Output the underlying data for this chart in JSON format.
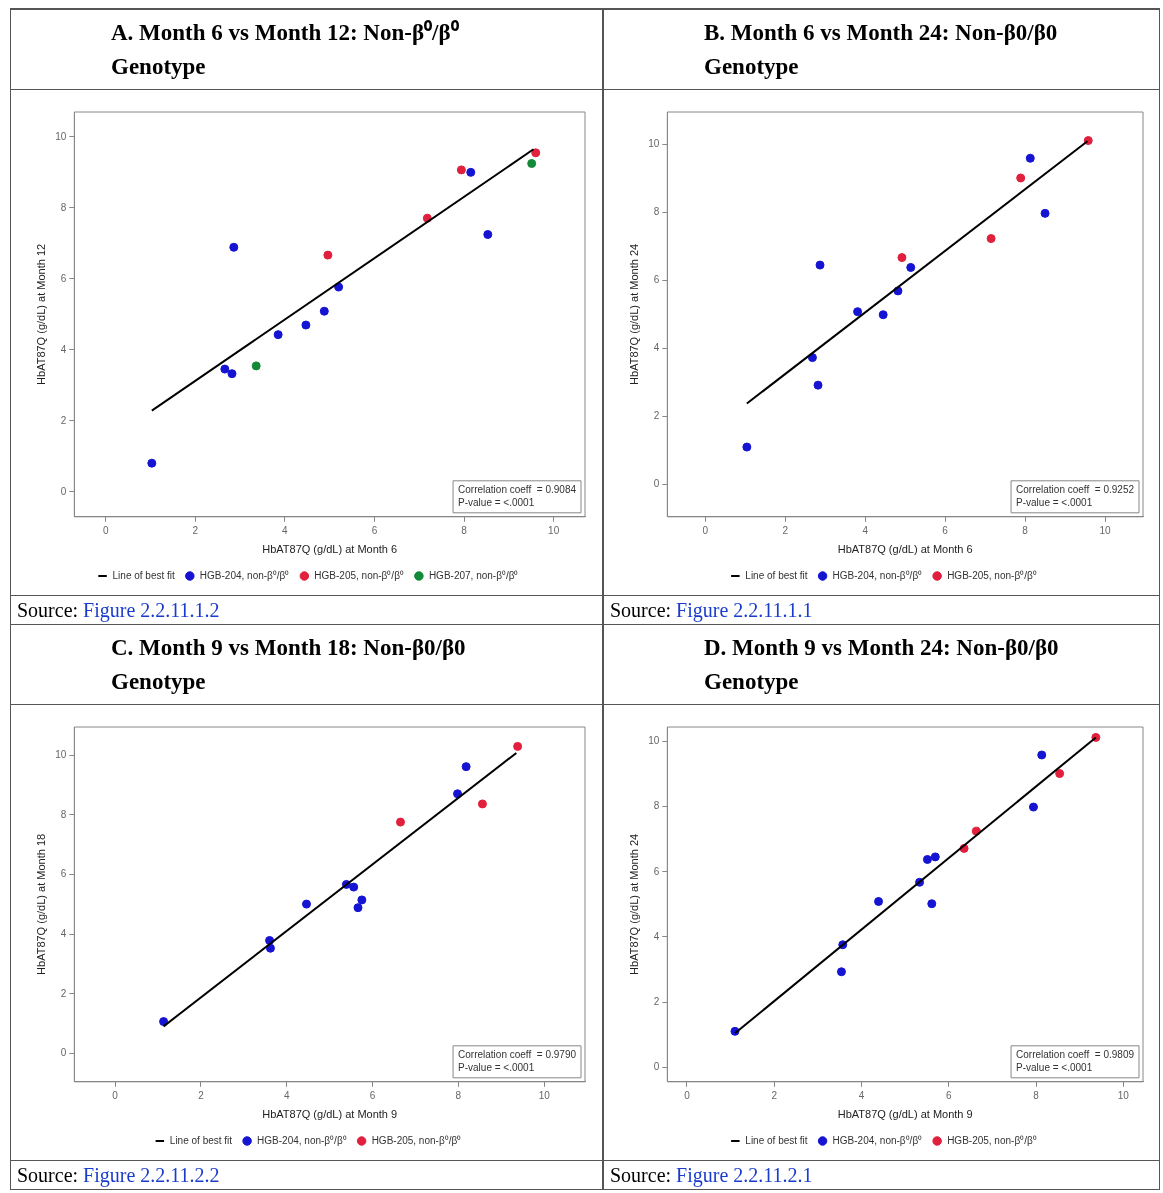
{
  "chart_data": [
    {
      "type": "scatter",
      "title": "A.  Month 6 vs Month 12: Non-β⁰/β⁰ Genotype",
      "xlabel": "HbAT87Q (g/dL) at Month 6",
      "ylabel": "HbAT87Q (g/dL) at Month 12",
      "xlim": [
        -0.7,
        10.7
      ],
      "ylim": [
        -0.7,
        10.7
      ],
      "xticks": [
        0,
        2,
        4,
        6,
        8,
        10
      ],
      "yticks": [
        0,
        2,
        4,
        6,
        8,
        10
      ],
      "legend": "bottom",
      "marker": "circle",
      "annotations": [
        "Correlation coeff  = 0.9084",
        "P-value = <.0001",
        "Source: Figure 2.2.11.1.2"
      ],
      "series": [
        {
          "name": "HGB-204, non-β⁰/β⁰",
          "color": "#1414d2",
          "x": [
            1.03,
            2.66,
            2.82,
            2.86,
            3.85,
            4.47,
            4.88,
            5.2,
            8.15,
            8.53
          ],
          "values": [
            0.81,
            3.46,
            3.33,
            6.89,
            4.43,
            4.7,
            5.09,
            5.77,
            9.0,
            7.25
          ]
        },
        {
          "name": "HGB-205, non-β⁰/β⁰",
          "color": "#e0203c",
          "x": [
            4.96,
            7.18,
            7.94,
            9.6
          ],
          "values": [
            6.67,
            7.71,
            9.07,
            9.55
          ]
        },
        {
          "name": "HGB-207, non-β⁰/β⁰",
          "color": "#128a38",
          "x": [
            3.36,
            9.51
          ],
          "values": [
            3.55,
            9.25
          ]
        },
        {
          "name": "Line of best fit",
          "type": "line",
          "color": "#000000",
          "marker": "none",
          "x": [
            1.03,
            9.55
          ],
          "values": [
            2.29,
            9.65
          ]
        }
      ]
    },
    {
      "type": "scatter",
      "title": "B.  Month 6 vs Month 24: Non-β0/β0 Genotype",
      "xlabel": "HbAT87Q (g/dL) at Month 6",
      "ylabel": "HbAT87Q (g/dL) at Month 24",
      "xlim": [
        -0.95,
        10.95
      ],
      "ylim": [
        -0.95,
        10.95
      ],
      "xticks": [
        0,
        2,
        4,
        6,
        8,
        10
      ],
      "yticks": [
        0,
        2,
        4,
        6,
        8,
        10
      ],
      "legend": "bottom",
      "marker": "circle",
      "annotations": [
        "Correlation coeff  = 0.9252",
        "P-value = <.0001",
        "Source: Figure 2.2.11.1.1"
      ],
      "series": [
        {
          "name": "HGB-204, non-β⁰/β⁰",
          "color": "#1414d2",
          "x": [
            1.04,
            2.68,
            2.82,
            2.87,
            3.81,
            4.45,
            4.82,
            5.14,
            8.13,
            8.5
          ],
          "values": [
            1.1,
            3.73,
            2.92,
            6.45,
            5.08,
            4.99,
            5.69,
            6.38,
            9.59,
            7.97
          ]
        },
        {
          "name": "HGB-205, non-β⁰/β⁰",
          "color": "#e0203c",
          "x": [
            4.92,
            7.15,
            7.89,
            9.58
          ],
          "values": [
            6.67,
            7.23,
            9.01,
            10.11
          ]
        },
        {
          "name": "Line of best fit",
          "type": "line",
          "color": "#000000",
          "marker": "none",
          "x": [
            1.04,
            9.56
          ],
          "values": [
            2.38,
            10.09
          ]
        }
      ]
    },
    {
      "type": "scatter",
      "title": "C.  Month 9 vs Month 18: Non-β0/β0 Genotype",
      "xlabel": "HbAT87Q (g/dL) at Month 9",
      "ylabel": "HbAT87Q (g/dL) at Month 18",
      "xlim": [
        -0.95,
        10.95
      ],
      "ylim": [
        -0.95,
        10.95
      ],
      "xticks": [
        0,
        2,
        4,
        6,
        8,
        10
      ],
      "yticks": [
        0,
        2,
        4,
        6,
        8,
        10
      ],
      "legend": "bottom",
      "marker": "circle",
      "annotations": [
        "Correlation coeff  = 0.9790",
        "P-value = <.0001",
        "Source: Figure 2.2.11.2.2"
      ],
      "series": [
        {
          "name": "HGB-204, non-β⁰/β⁰",
          "color": "#1414d2",
          "x": [
            1.13,
            3.6,
            3.62,
            4.46,
            5.39,
            5.56,
            5.66,
            5.75,
            7.98,
            8.18
          ],
          "values": [
            1.07,
            3.79,
            3.53,
            5.01,
            5.67,
            5.58,
            4.89,
            5.15,
            8.71,
            9.62
          ]
        },
        {
          "name": "HGB-205, non-β⁰/β⁰",
          "color": "#e0203c",
          "x": [
            6.65,
            8.56,
            9.38
          ],
          "values": [
            7.76,
            8.37,
            10.3
          ]
        },
        {
          "name": "Line of best fit",
          "type": "line",
          "color": "#000000",
          "marker": "none",
          "x": [
            1.13,
            9.35
          ],
          "values": [
            0.91,
            10.08
          ]
        }
      ]
    },
    {
      "type": "scatter",
      "title": "D.  Month 9 vs Month 24: Non-β0/β0 Genotype",
      "xlabel": "HbAT87Q (g/dL) at Month 9",
      "ylabel": "HbAT87Q (g/dL) at Month 24",
      "xlim": [
        -0.45,
        10.45
      ],
      "ylim": [
        -0.45,
        10.45
      ],
      "xticks": [
        0,
        2,
        4,
        6,
        8,
        10
      ],
      "yticks": [
        0,
        2,
        4,
        6,
        8,
        10
      ],
      "legend": "bottom",
      "marker": "circle",
      "annotations": [
        "Correlation coeff  = 0.9809",
        "P-value = <.0001",
        "Source: Figure 2.2.11.2.1"
      ],
      "series": [
        {
          "name": "HGB-204, non-β⁰/β⁰",
          "color": "#1414d2",
          "x": [
            1.1,
            3.57,
            3.54,
            4.39,
            5.33,
            5.51,
            5.69,
            5.61,
            7.94,
            8.13
          ],
          "values": [
            1.1,
            3.76,
            2.93,
            5.09,
            5.68,
            6.38,
            6.46,
            5.02,
            7.99,
            9.59
          ]
        },
        {
          "name": "HGB-205, non-β⁰/β⁰",
          "color": "#e0203c",
          "x": [
            6.35,
            6.63,
            8.54,
            9.37
          ],
          "values": [
            6.72,
            7.25,
            9.02,
            10.13
          ]
        },
        {
          "name": "Line of best fit",
          "type": "line",
          "color": "#000000",
          "marker": "none",
          "x": [
            1.1,
            9.37
          ],
          "values": [
            1.04,
            10.13
          ]
        }
      ]
    }
  ]
}
